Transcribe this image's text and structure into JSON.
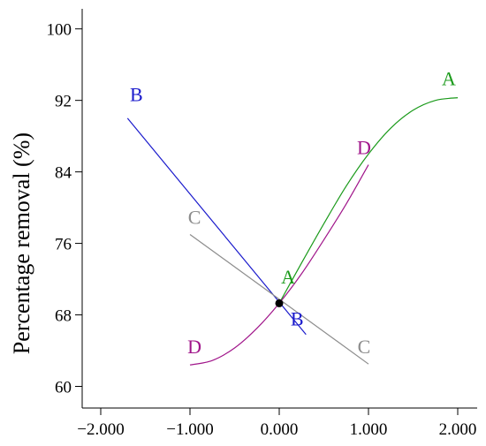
{
  "chart_data": {
    "type": "line",
    "title": "",
    "xlabel": "",
    "ylabel": "Percentage removal (%)",
    "xlim": [
      -2.3,
      2.0
    ],
    "ylim": [
      57,
      101
    ],
    "x_ticks": [
      -2.0,
      -1.0,
      0.0,
      1.0,
      2.0
    ],
    "x_tick_labels": [
      "−2.000",
      "−1.000",
      "0.000",
      "1.000",
      "2.000"
    ],
    "y_ticks": [
      60,
      68,
      76,
      84,
      92,
      100
    ],
    "y_tick_labels": [
      "60",
      "68",
      "76",
      "84",
      "92",
      "100"
    ],
    "grid": false,
    "center_point": {
      "x": 0.0,
      "y": 69.3
    },
    "series": [
      {
        "name": "A",
        "color": "#1a9a1a",
        "x": [
          0.0,
          0.25,
          0.5,
          0.75,
          1.0,
          1.25,
          1.5,
          1.75,
          2.0
        ],
        "y": [
          69.3,
          73.8,
          78.2,
          82.4,
          86.0,
          88.9,
          90.9,
          92.0,
          92.3
        ],
        "labels": [
          {
            "text": "A",
            "x": 0.1,
            "y": 71.5
          },
          {
            "text": "A",
            "x": 1.9,
            "y": 93.7
          }
        ]
      },
      {
        "name": "B",
        "color": "#1a1acc",
        "x": [
          -1.7,
          0.3
        ],
        "y": [
          90.0,
          65.8
        ],
        "labels": [
          {
            "text": "B",
            "x": -1.6,
            "y": 91.9
          },
          {
            "text": "B",
            "x": 0.2,
            "y": 66.8
          }
        ]
      },
      {
        "name": "C",
        "color": "#8c8c8c",
        "x": [
          -1.0,
          1.0
        ],
        "y": [
          77.0,
          62.5
        ],
        "labels": [
          {
            "text": "C",
            "x": -0.95,
            "y": 78.2
          },
          {
            "text": "C",
            "x": 0.95,
            "y": 63.7
          }
        ]
      },
      {
        "name": "D",
        "color": "#a0158a",
        "x": [
          -1.0,
          -0.75,
          -0.5,
          -0.25,
          0.0,
          0.25,
          0.5,
          0.75,
          1.0
        ],
        "y": [
          62.4,
          62.9,
          64.3,
          66.5,
          69.3,
          72.6,
          76.4,
          80.4,
          84.8
        ],
        "labels": [
          {
            "text": "D",
            "x": -0.95,
            "y": 63.7
          },
          {
            "text": "D",
            "x": 0.95,
            "y": 86.0
          }
        ]
      }
    ]
  }
}
